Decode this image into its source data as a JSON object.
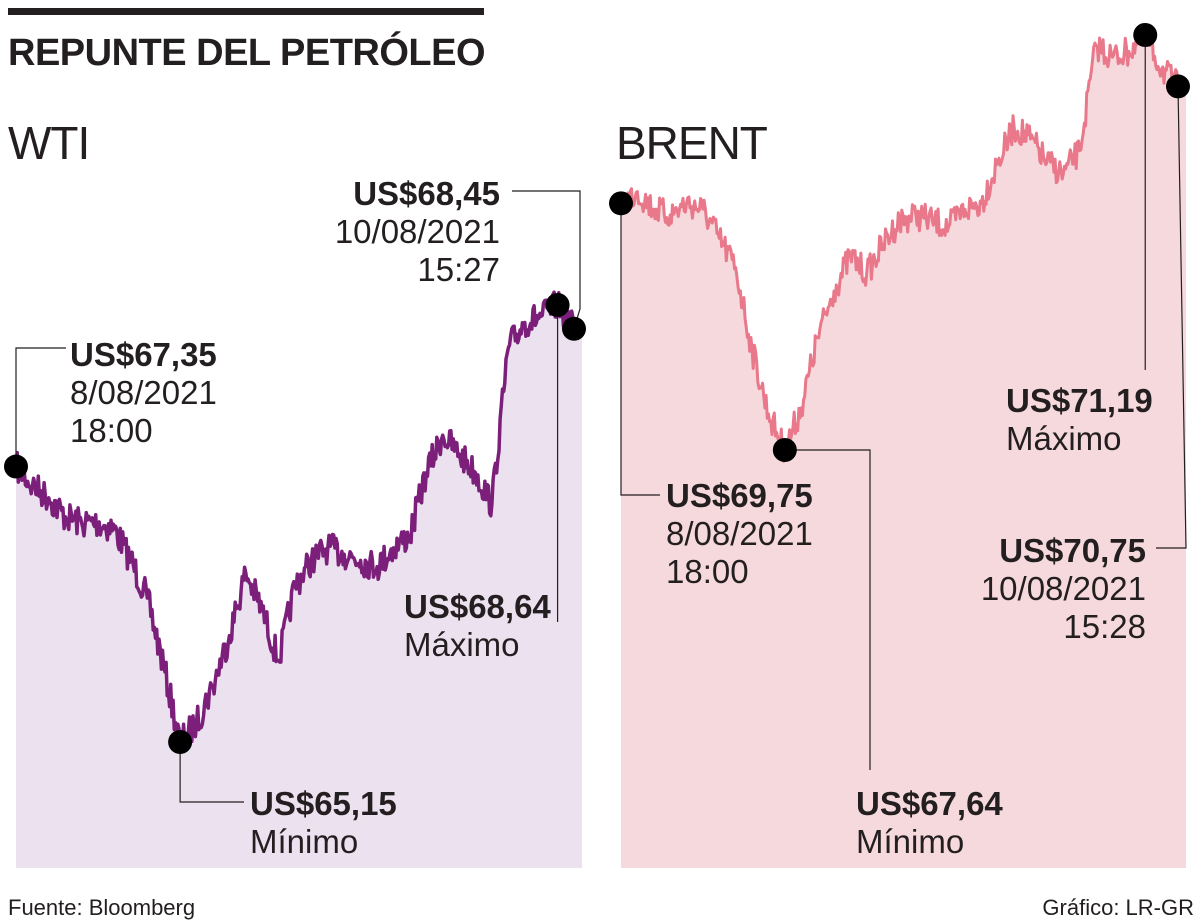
{
  "title": "REPUNTE DEL PETRÓLEO",
  "source": "Fuente: Bloomberg",
  "credit": "Gráfico: LR-GR",
  "colors": {
    "wti_line": "#7b1f7a",
    "wti_fill": "#ece1ef",
    "brent_line": "#e8788a",
    "brent_fill": "#f6d9dc",
    "text": "#231f20"
  },
  "chart_data": [
    {
      "type": "line",
      "name": "WTI",
      "currency": "US$",
      "ylim": [
        64.8,
        69.1
      ],
      "values": [
        67.35,
        67.2,
        67.1,
        66.95,
        66.9,
        66.9,
        66.85,
        66.6,
        66.3,
        65.75,
        65.15,
        65.3,
        65.6,
        66.0,
        66.5,
        66.2,
        65.8,
        66.4,
        66.6,
        66.7,
        66.65,
        66.6,
        66.55,
        66.7,
        66.8,
        67.3,
        67.6,
        67.45,
        67.3,
        67.05,
        68.3,
        68.5,
        68.55,
        68.64,
        68.45
      ],
      "points": [
        {
          "index": 0,
          "value_label": "US$67,35",
          "date": "8/08/2021",
          "time": "18:00"
        },
        {
          "index": 10,
          "value_label": "US$65,15",
          "caption": "Mínimo"
        },
        {
          "index": 33,
          "value_label": "US$68,64",
          "caption": "Máximo"
        },
        {
          "index": 34,
          "value_label": "US$68,45",
          "date": "10/08/2021",
          "time": "15:27"
        }
      ]
    },
    {
      "type": "line",
      "name": "BRENT",
      "currency": "US$",
      "ylim": [
        67.4,
        71.3
      ],
      "values": [
        69.75,
        69.85,
        69.7,
        69.65,
        69.75,
        69.7,
        69.45,
        69.2,
        68.5,
        67.95,
        67.64,
        68.0,
        68.6,
        69.0,
        69.3,
        69.15,
        69.4,
        69.6,
        69.65,
        69.6,
        69.55,
        69.7,
        69.75,
        70.1,
        70.4,
        70.3,
        70.1,
        70.0,
        70.2,
        71.1,
        71.0,
        71.05,
        71.19,
        70.9,
        70.75
      ],
      "points": [
        {
          "index": 0,
          "value_label": "US$69,75",
          "date": "8/08/2021",
          "time": "18:00"
        },
        {
          "index": 10,
          "value_label": "US$67,64",
          "caption": "Mínimo"
        },
        {
          "index": 32,
          "value_label": "US$71,19",
          "caption": "Máximo"
        },
        {
          "index": 34,
          "value_label": "US$70,75",
          "date": "10/08/2021",
          "time": "15:28"
        }
      ]
    }
  ]
}
